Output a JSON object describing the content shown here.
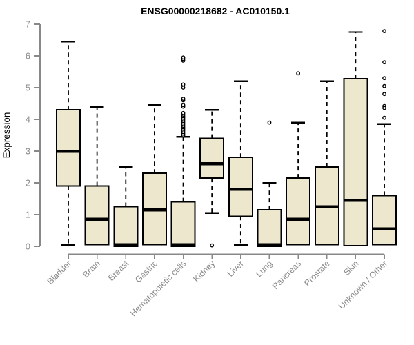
{
  "page": {
    "background": "#ffffff"
  },
  "chart_data": {
    "type": "boxplot",
    "title": "ENSG00000218682 - AC010150.1",
    "ylabel": "Expression",
    "xlabel": "",
    "ylim": [
      0,
      7
    ],
    "yticks": [
      0,
      1,
      2,
      3,
      4,
      5,
      6,
      7
    ],
    "grid": false,
    "legend": null,
    "categories": [
      "Bladder",
      "Brain",
      "Breast",
      "Gastric",
      "Hematopoietic cells",
      "Kidney",
      "Liver",
      "Lung",
      "Pancreas",
      "Prostate",
      "Skin",
      "Unknown / Other"
    ],
    "boxes": [
      {
        "category": "Bladder",
        "whisker_low": 0.05,
        "q1": 1.9,
        "median": 3.0,
        "q3": 4.3,
        "whisker_high": 6.45,
        "outliers": []
      },
      {
        "category": "Brain",
        "whisker_low": 0.05,
        "q1": 0.05,
        "median": 0.85,
        "q3": 1.9,
        "whisker_high": 4.4,
        "outliers": []
      },
      {
        "category": "Breast",
        "whisker_low": 0.0,
        "q1": 0.0,
        "median": 0.05,
        "q3": 1.25,
        "whisker_high": 2.5,
        "outliers": []
      },
      {
        "category": "Gastric",
        "whisker_low": 0.05,
        "q1": 0.05,
        "median": 1.15,
        "q3": 2.3,
        "whisker_high": 4.45,
        "outliers": []
      },
      {
        "category": "Hematopoietic cells",
        "whisker_low": 0.0,
        "q1": 0.0,
        "median": 0.05,
        "q3": 1.4,
        "whisker_high": 3.45,
        "outliers": [
          3.5,
          3.55,
          3.6,
          3.65,
          3.7,
          3.75,
          3.8,
          3.85,
          3.9,
          3.95,
          4.0,
          4.05,
          4.1,
          4.15,
          4.2,
          4.4,
          4.45,
          4.6,
          4.65,
          5.0,
          5.1,
          5.85,
          5.9,
          5.95
        ]
      },
      {
        "category": "Kidney",
        "whisker_low": 1.05,
        "q1": 2.15,
        "median": 2.6,
        "q3": 3.4,
        "whisker_high": 4.3,
        "outliers": [
          0.03
        ]
      },
      {
        "category": "Liver",
        "whisker_low": 0.05,
        "q1": 0.95,
        "median": 1.8,
        "q3": 2.8,
        "whisker_high": 5.2,
        "outliers": []
      },
      {
        "category": "Lung",
        "whisker_low": 0.0,
        "q1": 0.0,
        "median": 0.05,
        "q3": 1.15,
        "whisker_high": 2.0,
        "outliers": [
          3.9
        ]
      },
      {
        "category": "Pancreas",
        "whisker_low": 0.05,
        "q1": 0.05,
        "median": 0.85,
        "q3": 2.15,
        "whisker_high": 3.9,
        "outliers": [
          5.45
        ]
      },
      {
        "category": "Prostate",
        "whisker_low": 0.05,
        "q1": 0.05,
        "median": 1.25,
        "q3": 2.5,
        "whisker_high": 5.2,
        "outliers": []
      },
      {
        "category": "Skin",
        "whisker_low": 0.02,
        "q1": 0.02,
        "median": 1.45,
        "q3": 5.28,
        "whisker_high": 6.75,
        "outliers": []
      },
      {
        "category": "Unknown / Other",
        "whisker_low": 0.05,
        "q1": 0.05,
        "median": 0.55,
        "q3": 1.6,
        "whisker_high": 3.85,
        "outliers": [
          6.78,
          5.8,
          5.3,
          5.05,
          4.8,
          4.42,
          4.36,
          4.05
        ]
      }
    ],
    "colors": {
      "box_fill": "#EDE8CD",
      "box_stroke": "#000000",
      "median": "#000000",
      "whisker": "#000000",
      "outlier_stroke": "#000000",
      "axis": "#888888",
      "tick_label": "#8b8b8b",
      "title": "#000000"
    }
  }
}
